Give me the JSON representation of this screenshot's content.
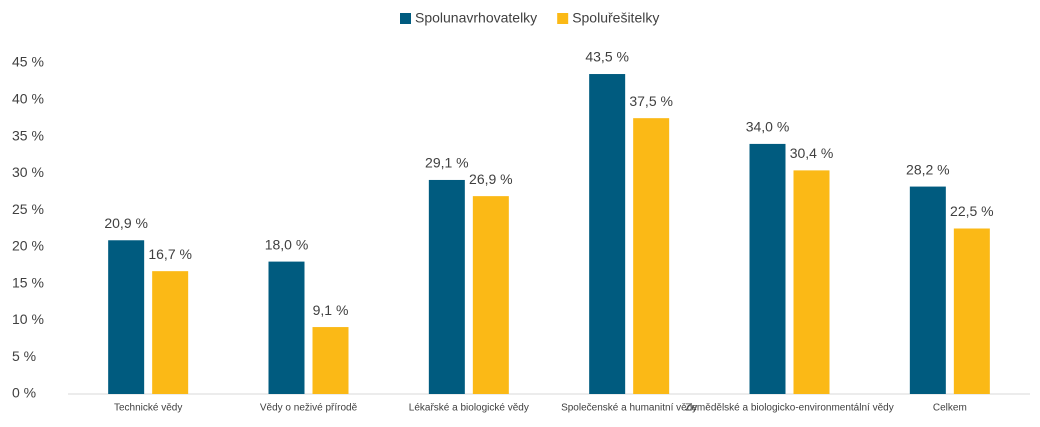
{
  "chart_data": {
    "type": "bar",
    "categories": [
      "Technické vědy",
      "Vědy o neživé přírodě",
      "Lékařské a biologické vědy",
      "Společenské a humanitní vědy",
      "Zemědělské a biologicko-environmentální vědy",
      "Celkem"
    ],
    "series": [
      {
        "name": "Spolunavrhovatelky",
        "color": "#005b7f",
        "values": [
          20.9,
          18.0,
          29.1,
          43.5,
          34.0,
          28.2
        ],
        "value_labels": [
          "20,9 %",
          "18,0 %",
          "29,1 %",
          "43,5 %",
          "34,0 %",
          "28,2 %"
        ]
      },
      {
        "name": "Spoluřešitelky",
        "color": "#fbb916",
        "values": [
          16.7,
          9.1,
          26.9,
          37.5,
          30.4,
          22.5
        ],
        "value_labels": [
          "16,7 %",
          "9,1 %",
          "26,9 %",
          "37,5 %",
          "30,4 %",
          "22,5 %"
        ]
      }
    ],
    "ylim": [
      0,
      45
    ],
    "yticks": [
      {
        "value": 0,
        "label": "0 %"
      },
      {
        "value": 5,
        "label": "5 %"
      },
      {
        "value": 10,
        "label": "10 %"
      },
      {
        "value": 15,
        "label": "15 %"
      },
      {
        "value": 20,
        "label": "20 %"
      },
      {
        "value": 25,
        "label": "25 %"
      },
      {
        "value": 30,
        "label": "30 %"
      },
      {
        "value": 35,
        "label": "35 %"
      },
      {
        "value": 40,
        "label": "40 %"
      },
      {
        "value": 45,
        "label": "45 %"
      }
    ],
    "grid": false,
    "legend": "top"
  }
}
